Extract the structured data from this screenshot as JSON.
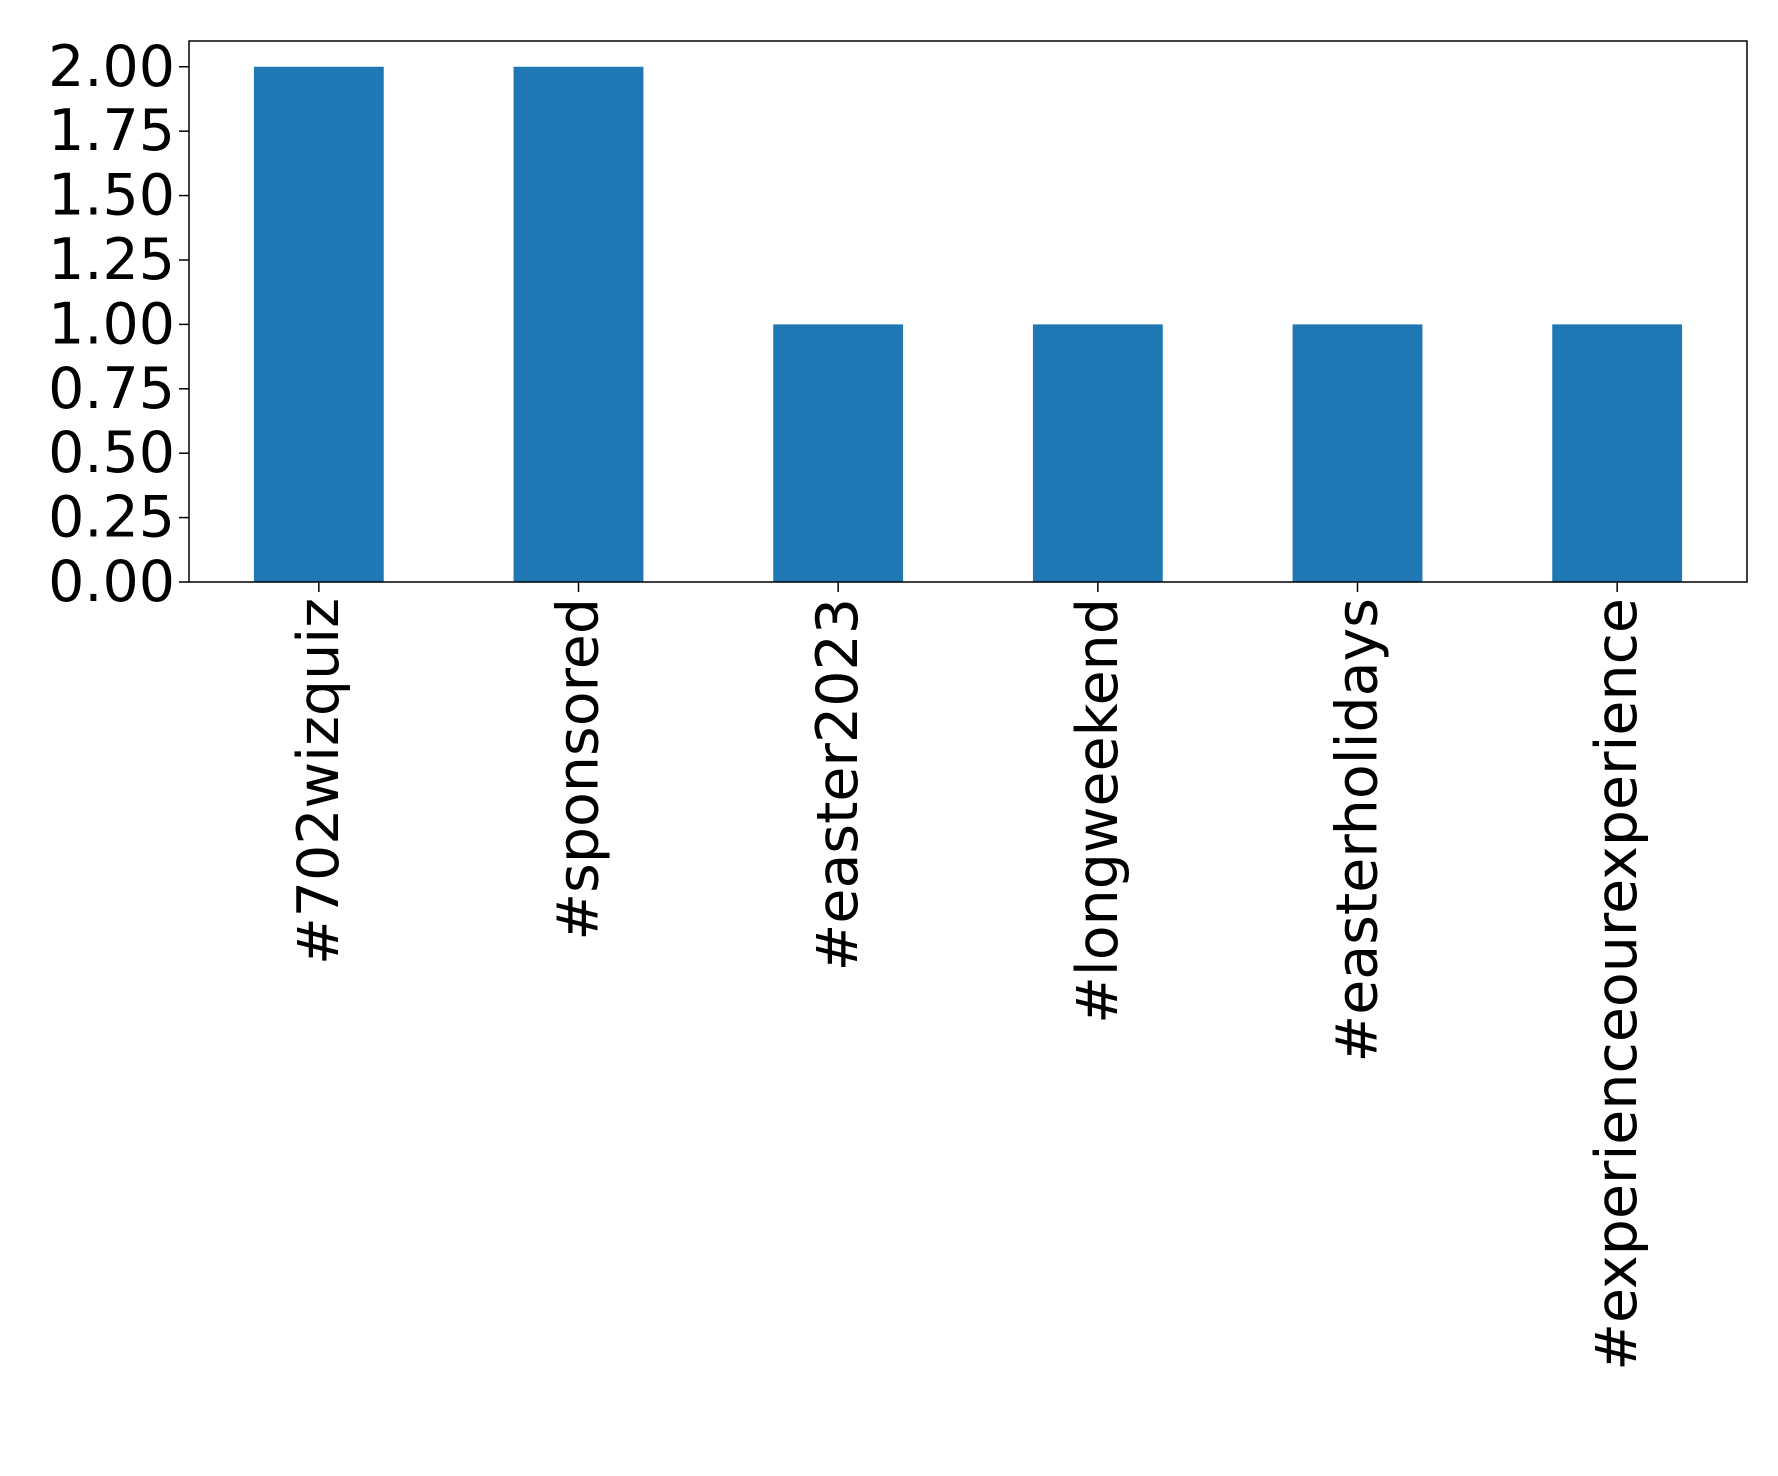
{
  "chart_data": {
    "type": "bar",
    "categories": [
      "#702wizquiz",
      "#sponsored",
      "#easter2023",
      "#longweekend",
      "#easterholidays",
      "#experienceourexperience"
    ],
    "values": [
      2,
      2,
      1,
      1,
      1,
      1
    ],
    "color": "#1f77b4",
    "ylim": [
      0,
      2.1
    ],
    "yticks": [
      {
        "value": 0,
        "label": "0.00"
      },
      {
        "value": 0.25,
        "label": "0.25"
      },
      {
        "value": 0.5,
        "label": "0.50"
      },
      {
        "value": 0.75,
        "label": "0.75"
      },
      {
        "value": 1,
        "label": "1.00"
      },
      {
        "value": 1.25,
        "label": "1.25"
      },
      {
        "value": 1.5,
        "label": "1.50"
      },
      {
        "value": 1.75,
        "label": "1.75"
      },
      {
        "value": 2,
        "label": "2.00"
      }
    ],
    "grid": false
  }
}
